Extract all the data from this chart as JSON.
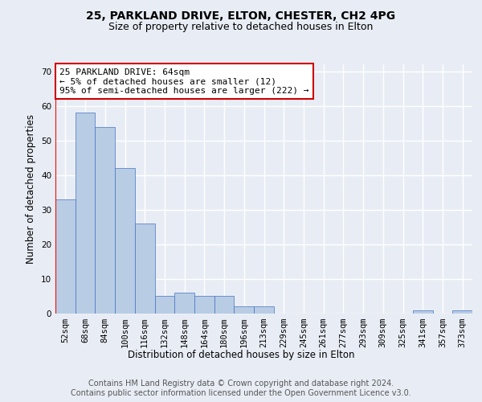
{
  "title1": "25, PARKLAND DRIVE, ELTON, CHESTER, CH2 4PG",
  "title2": "Size of property relative to detached houses in Elton",
  "xlabel": "Distribution of detached houses by size in Elton",
  "ylabel": "Number of detached properties",
  "categories": [
    "52sqm",
    "68sqm",
    "84sqm",
    "100sqm",
    "116sqm",
    "132sqm",
    "148sqm",
    "164sqm",
    "180sqm",
    "196sqm",
    "213sqm",
    "229sqm",
    "245sqm",
    "261sqm",
    "277sqm",
    "293sqm",
    "309sqm",
    "325sqm",
    "341sqm",
    "357sqm",
    "373sqm"
  ],
  "values": [
    33,
    58,
    54,
    42,
    26,
    5,
    6,
    5,
    5,
    2,
    2,
    0,
    0,
    0,
    0,
    0,
    0,
    0,
    1,
    0,
    1
  ],
  "bar_color": "#b8cce4",
  "bar_edge_color": "#4472c4",
  "highlight_line_color": "#ff0000",
  "annotation_text": "25 PARKLAND DRIVE: 64sqm\n← 5% of detached houses are smaller (12)\n95% of semi-detached houses are larger (222) →",
  "annotation_box_color": "#ffffff",
  "annotation_box_edge": "#cc0000",
  "ylim": [
    0,
    72
  ],
  "yticks": [
    0,
    10,
    20,
    30,
    40,
    50,
    60,
    70
  ],
  "footer_text": "Contains HM Land Registry data © Crown copyright and database right 2024.\nContains public sector information licensed under the Open Government Licence v3.0.",
  "background_color": "#e8edf5",
  "plot_bg_color": "#e8edf5",
  "grid_color": "#ffffff",
  "title1_fontsize": 10,
  "title2_fontsize": 9,
  "axis_label_fontsize": 8.5,
  "tick_fontsize": 7.5,
  "footer_fontsize": 7,
  "annotation_fontsize": 8
}
